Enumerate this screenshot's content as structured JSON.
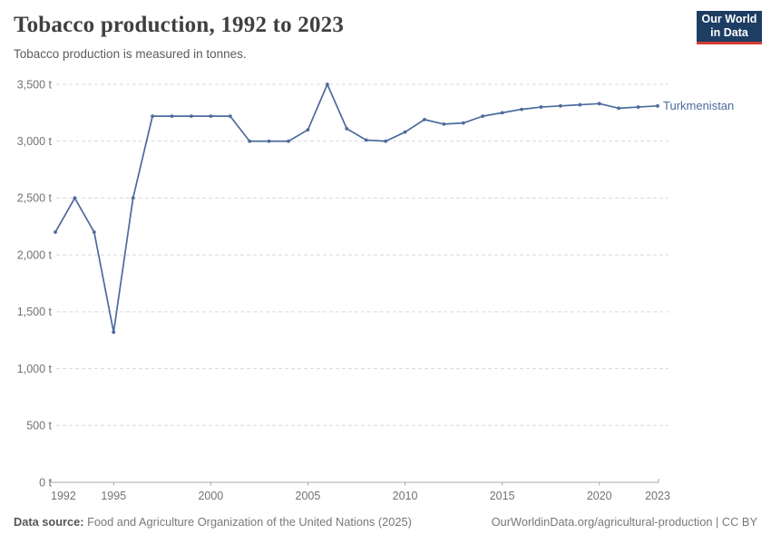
{
  "header": {
    "title": "Tobacco production, 1992 to 2023",
    "subtitle": "Tobacco production is measured in tonnes.",
    "logo": {
      "line1": "Our World",
      "line2": "in Data"
    }
  },
  "chart_data": {
    "type": "line",
    "title": "Tobacco production, 1992 to 2023",
    "ylabel": "",
    "xlabel": "",
    "y_unit": " t",
    "xlim": [
      1992,
      2023
    ],
    "ylim": [
      0,
      3500
    ],
    "grid": "horizontal-dashed",
    "legend": "end-of-line-label",
    "x_ticks": [
      1992,
      1995,
      2000,
      2005,
      2010,
      2015,
      2020,
      2023
    ],
    "y_ticks": [
      0,
      500,
      1000,
      1500,
      2000,
      2500,
      3000,
      3500
    ],
    "x": [
      1992,
      1993,
      1994,
      1995,
      1996,
      1997,
      1998,
      1999,
      2000,
      2001,
      2002,
      2003,
      2004,
      2005,
      2006,
      2007,
      2008,
      2009,
      2010,
      2011,
      2012,
      2013,
      2014,
      2015,
      2016,
      2017,
      2018,
      2019,
      2020,
      2021,
      2022,
      2023
    ],
    "series": [
      {
        "name": "Turkmenistan",
        "color": "#4C6A9C",
        "values": [
          2200,
          2500,
          2200,
          1320,
          2500,
          3220,
          3220,
          3220,
          3220,
          3220,
          3000,
          3000,
          3000,
          3100,
          3500,
          3110,
          3010,
          3000,
          3080,
          3190,
          3150,
          3160,
          3220,
          3250,
          3280,
          3300,
          3310,
          3320,
          3330,
          3290,
          3300,
          3310
        ]
      }
    ]
  },
  "footer": {
    "source_label": "Data source:",
    "source_text": " Food and Agriculture Organization of the United Nations (2025)",
    "right_link": "OurWorldinData.org/agricultural-production",
    "right_suffix": " | CC BY"
  },
  "colors": {
    "accent_line": "#4C6A9C",
    "grid": "#d9d9d9",
    "axis": "#a8a8a8",
    "tick_label": "#737373",
    "logo_bg": "#1d3d63",
    "logo_accent": "#d63c34"
  }
}
